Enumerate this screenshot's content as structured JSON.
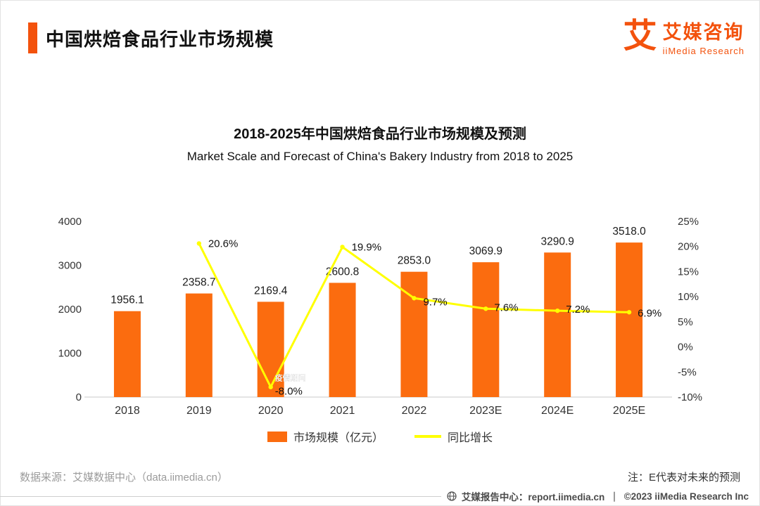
{
  "colors": {
    "accent_orange": "#F3520D",
    "bar_orange": "#FB6C0F",
    "line_yellow": "#FFFF00"
  },
  "header": {
    "title": "中国烘焙食品行业市场规模",
    "logo_glyph": "艾",
    "logo_cn": "艾媒咨询",
    "logo_en": "iiMedia Research"
  },
  "chart": {
    "title_cn": "2018-2025年中国烘焙食品行业市场规模及预测",
    "title_en": "Market Scale and Forecast of China's Bakery Industry from 2018 to 2025"
  },
  "chart_data": {
    "type": "combo-bar-line",
    "categories": [
      "2018",
      "2019",
      "2020",
      "2021",
      "2022",
      "2023E",
      "2024E",
      "2025E"
    ],
    "series": [
      {
        "name": "市场规模（亿元）",
        "type": "bar",
        "axis": "left",
        "color": "#FB6C0F",
        "values": [
          1956.1,
          2358.7,
          2169.4,
          2600.8,
          2853.0,
          3069.9,
          3290.9,
          3518.0
        ]
      },
      {
        "name": "同比增长",
        "type": "line",
        "axis": "right",
        "color": "#FFFF00",
        "unit": "%",
        "values": [
          null,
          20.6,
          -8.0,
          19.9,
          9.7,
          7.6,
          7.2,
          6.9
        ]
      }
    ],
    "left_axis": {
      "min": 0,
      "max": 4000,
      "tick_step": 1000
    },
    "right_axis": {
      "min": -10,
      "max": 25,
      "tick_step": 5,
      "format": "percent"
    },
    "annotation": {
      "category": "2020",
      "text": "疫情期间",
      "value": "-8.0%"
    },
    "legend_position": "bottom",
    "grid": false
  },
  "source": {
    "left": "数据来源：艾媒数据中心（data.iimedia.cn）",
    "right": "注：E代表对未来的预测"
  },
  "footer": {
    "site": "艾媒报告中心：report.iimedia.cn",
    "separator": "｜",
    "copyright": "©2023 iiMedia Research  Inc"
  }
}
